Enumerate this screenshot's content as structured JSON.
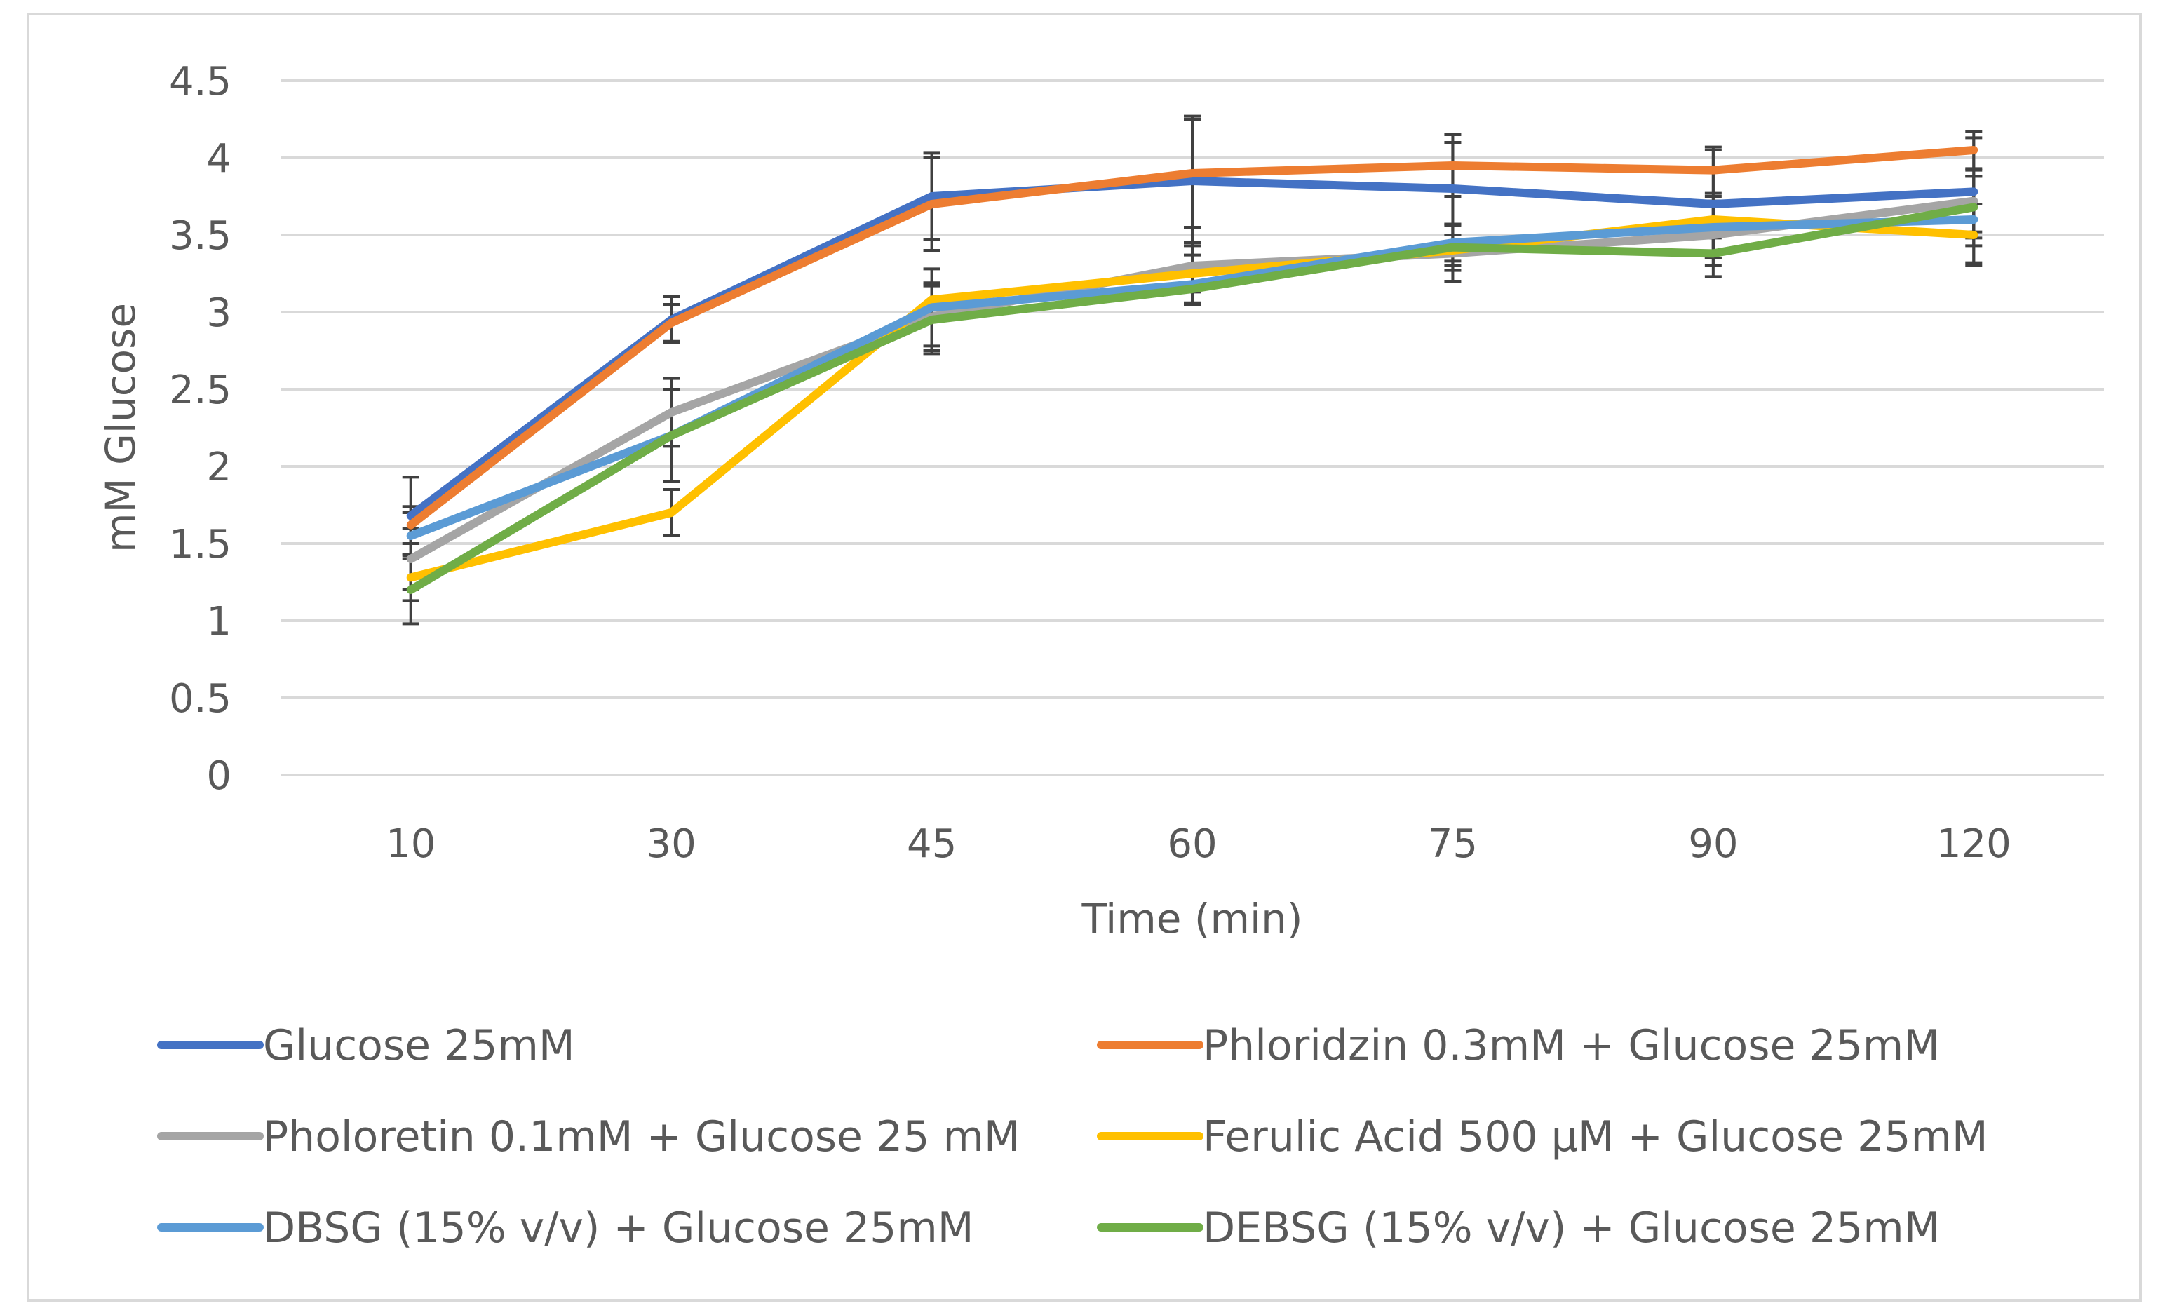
{
  "chart_data": {
    "type": "line",
    "title": "",
    "xlabel": "Time (min)",
    "ylabel": "mM Glucose",
    "categories": [
      "10",
      "30",
      "45",
      "60",
      "75",
      "90",
      "120"
    ],
    "ylim": [
      0,
      4.5
    ],
    "yticks": [
      0,
      0.5,
      1,
      1.5,
      2,
      2.5,
      3,
      3.5,
      4,
      4.5
    ],
    "ytick_labels": [
      "0",
      "0.5",
      "1",
      "1.5",
      "2",
      "2.5",
      "3",
      "3.5",
      "4",
      "4.5"
    ],
    "grid": true,
    "legend_position": "bottom",
    "series": [
      {
        "name": "Glucose 25mM",
        "color": "#4472C4",
        "values": [
          1.68,
          2.95,
          3.75,
          3.85,
          3.8,
          3.7,
          3.78
        ],
        "errors": [
          0.25,
          0.15,
          0.28,
          0.42,
          0.3,
          0.35,
          0.35
        ]
      },
      {
        "name": "Phloridzin 0.3mM + Glucose 25mM",
        "color": "#ED7D31",
        "values": [
          1.62,
          2.93,
          3.7,
          3.9,
          3.95,
          3.92,
          4.05
        ],
        "errors": [
          0.12,
          0.12,
          0.3,
          0.35,
          0.2,
          0.15,
          0.12
        ]
      },
      {
        "name": "Pholoretin 0.1mM + Glucose 25 mM",
        "color": "#A5A5A5",
        "values": [
          1.4,
          2.35,
          2.97,
          3.3,
          3.38,
          3.5,
          3.72
        ],
        "errors": [
          0.2,
          0.22,
          0.22,
          0.15,
          0.18,
          0.2,
          0.2
        ]
      },
      {
        "name": "Ferulic Acid 500 µM + Glucose 25mM",
        "color": "#FFC000",
        "values": [
          1.28,
          1.7,
          3.08,
          3.25,
          3.4,
          3.6,
          3.5
        ],
        "errors": [
          0.15,
          0.15,
          0.1,
          0.12,
          0.1,
          0.12,
          0.2
        ]
      },
      {
        "name": "DBSG (15% v/v)  + Glucose 25mM",
        "color": "#5B9BD5",
        "values": [
          1.55,
          2.2,
          3.03,
          3.18,
          3.45,
          3.55,
          3.6
        ],
        "errors": [
          0.15,
          0.3,
          0.25,
          0.12,
          0.12,
          0.2,
          0.28
        ]
      },
      {
        "name": "DEBSG (15% v/v) + Glucose 25mM",
        "color": "#70AD47",
        "values": [
          1.2,
          2.2,
          2.95,
          3.15,
          3.42,
          3.38,
          3.68
        ],
        "errors": [
          0.22,
          0.3,
          0.22,
          0.1,
          0.15,
          0.15,
          0.2
        ]
      }
    ]
  }
}
